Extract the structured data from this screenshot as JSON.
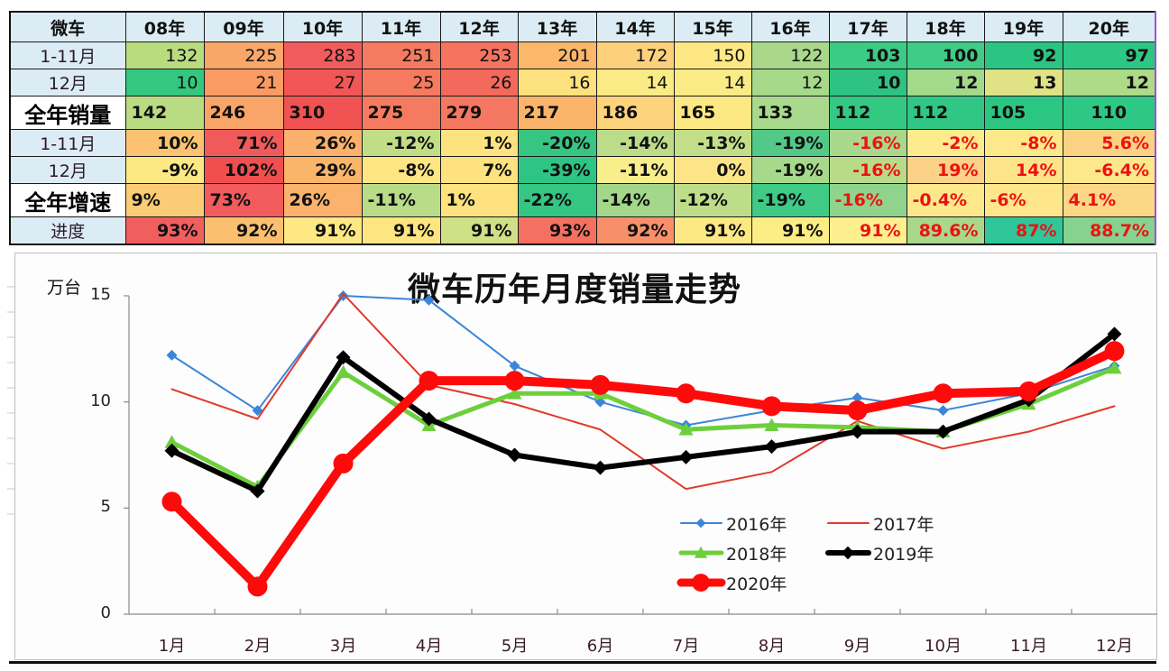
{
  "table": {
    "corner_label": "微车",
    "years": [
      "08年",
      "09年",
      "10年",
      "11年",
      "12年",
      "13年",
      "14年",
      "15年",
      "16年",
      "17年",
      "18年",
      "19年",
      "20年"
    ],
    "rows": [
      {
        "label": "1-11月",
        "style": "small",
        "values": [
          "132",
          "225",
          "283",
          "251",
          "253",
          "201",
          "172",
          "150",
          "122",
          "103",
          "100",
          "92",
          "97"
        ],
        "colors": [
          "#b9dc7f",
          "#f9a768",
          "#f15c5c",
          "#f57a60",
          "#f57460",
          "#fbb76a",
          "#fdd07b",
          "#fde884",
          "#a9d88a",
          "#3ccb84",
          "#3ecc86",
          "#2bc583",
          "#2dc784"
        ]
      },
      {
        "label": "12月",
        "style": "small",
        "values": [
          "10",
          "21",
          "27",
          "25",
          "26",
          "16",
          "14",
          "14",
          "12",
          "10",
          "12",
          "13",
          "12"
        ],
        "colors": [
          "#34c77f",
          "#fa9b63",
          "#f15757",
          "#f57a60",
          "#f36a5d",
          "#fde17e",
          "#fbeb86",
          "#fbeb86",
          "#a6d98a",
          "#2ec382",
          "#a3d98a",
          "#dfe386",
          "#aedb88"
        ]
      },
      {
        "label": "全年销量",
        "style": "big",
        "values": [
          "142",
          "246",
          "310",
          "275",
          "279",
          "217",
          "186",
          "165",
          "133",
          "112",
          "112",
          "105",
          "110"
        ],
        "colors": [
          "#b9db82",
          "#f9a468",
          "#f15252",
          "#f47b5f",
          "#f47862",
          "#fbb56a",
          "#fdd37b",
          "#fde983",
          "#a9d98c",
          "#34c983",
          "#30c784",
          "#2cc683",
          "#2ec885"
        ]
      },
      {
        "label": "1-11月",
        "style": "small",
        "values": [
          "10%",
          "71%",
          "26%",
          "-12%",
          "1%",
          "-20%",
          "-14%",
          "-13%",
          "-19%",
          "-16%",
          "-2%",
          "-8%",
          "5.6%"
        ],
        "colors": [
          "#fbc272",
          "#f15a5a",
          "#fbb06c",
          "#c1de86",
          "#fde37f",
          "#36c681",
          "#bcdc89",
          "#c3de89",
          "#53c987",
          "#a9d88c",
          "#feeb8d",
          "#fde88a",
          "#fbd283"
        ],
        "red_from": 9
      },
      {
        "label": "12月",
        "style": "small",
        "values": [
          "-9%",
          "102%",
          "29%",
          "-8%",
          "7%",
          "-39%",
          "-11%",
          "0%",
          "-19%",
          "-16%",
          "19%",
          "14%",
          "-6.4%"
        ],
        "colors": [
          "#fde984",
          "#f14f4f",
          "#fbb56b",
          "#fde683",
          "#fde27f",
          "#2ec483",
          "#f9ee8c",
          "#fde587",
          "#a6d98b",
          "#b9db89",
          "#fbd287",
          "#fde48a",
          "#fde88c"
        ],
        "red_from": 9
      },
      {
        "label": "全年增速",
        "style": "big",
        "values": [
          "9%",
          "73%",
          "26%",
          "-11%",
          "1%",
          "-22%",
          "-14%",
          "-12%",
          "-19%",
          "-16%",
          "-0.4%",
          "-6%",
          "4.1%"
        ],
        "colors": [
          "#fbcc75",
          "#f25c5c",
          "#fbb26c",
          "#b8dc88",
          "#fde27f",
          "#34c682",
          "#a3d88b",
          "#bedd89",
          "#3fca86",
          "#8fd38c",
          "#fee88c",
          "#fde78a",
          "#fbd886"
        ],
        "red_from": 9
      },
      {
        "label": "进度",
        "style": "small",
        "values": [
          "93%",
          "92%",
          "91%",
          "91%",
          "91%",
          "93%",
          "92%",
          "91%",
          "91%",
          "91%",
          "89.6%",
          "87%",
          "88.7%"
        ],
        "colors": [
          "#f15e5e",
          "#fbbf70",
          "#fde883",
          "#fde581",
          "#cfe086",
          "#f47060",
          "#f7906a",
          "#fde983",
          "#fded85",
          "#feef8e",
          "#a8d88c",
          "#2fc79a",
          "#86d28f"
        ],
        "red_from": 9
      }
    ]
  },
  "chart": {
    "title": "微车历年月度销量走势",
    "y_unit": "万台"
  },
  "chart_data": {
    "type": "line",
    "title": "微车历年月度销量走势",
    "xlabel": "",
    "ylabel": "万台",
    "ylim": [
      0,
      15
    ],
    "yticks": [
      0,
      5,
      10,
      15
    ],
    "grid": false,
    "legend_position": "lower-right-inside",
    "categories": [
      "1月",
      "2月",
      "3月",
      "4月",
      "5月",
      "6月",
      "7月",
      "8月",
      "9月",
      "10月",
      "11月",
      "12月"
    ],
    "series": [
      {
        "name": "2016年",
        "color": "#3a86d8",
        "width": 2,
        "marker": "diamond",
        "values": [
          12.2,
          9.6,
          15.0,
          14.8,
          11.7,
          10.0,
          8.9,
          9.6,
          10.2,
          9.6,
          10.4,
          11.7
        ]
      },
      {
        "name": "2017年",
        "color": "#e03a2a",
        "width": 2,
        "marker": "none",
        "values": [
          10.6,
          9.2,
          15.1,
          10.8,
          9.9,
          8.7,
          5.9,
          6.7,
          9.1,
          7.8,
          8.6,
          9.8
        ]
      },
      {
        "name": "2018年",
        "color": "#6dcf3c",
        "width": 5,
        "marker": "triangle",
        "values": [
          8.1,
          6.0,
          11.4,
          8.9,
          10.4,
          10.4,
          8.7,
          8.9,
          8.8,
          8.6,
          9.9,
          11.6
        ]
      },
      {
        "name": "2019年",
        "color": "#000000",
        "width": 6,
        "marker": "diamond",
        "values": [
          7.7,
          5.8,
          12.1,
          9.2,
          7.5,
          6.9,
          7.4,
          7.9,
          8.6,
          8.6,
          10.1,
          13.2
        ]
      },
      {
        "name": "2020年",
        "color": "#ff0a0a",
        "width": 10,
        "marker": "circle",
        "values": [
          5.3,
          1.3,
          7.1,
          11.0,
          11.0,
          10.8,
          10.4,
          9.8,
          9.6,
          10.4,
          10.5,
          12.4
        ]
      }
    ]
  }
}
